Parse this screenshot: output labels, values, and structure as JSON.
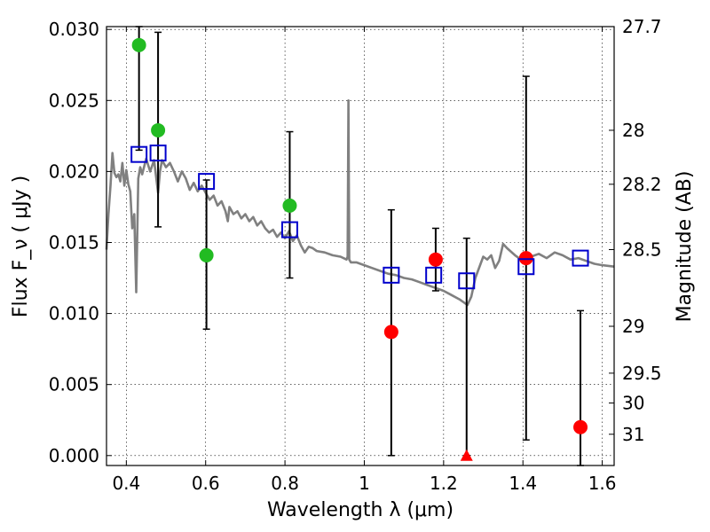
{
  "chart_data": {
    "type": "scatter",
    "xlabel": "Wavelength  λ (μm)",
    "ylabel": "Flux  F_ν  ( μJy )",
    "y2label": "Magnitude (AB)",
    "xlim": [
      0.35,
      1.63
    ],
    "ylim": [
      -0.0007,
      0.0302
    ],
    "grid": true,
    "x_ticks": [
      0.4,
      0.6,
      0.8,
      1.0,
      1.2,
      1.4,
      1.6
    ],
    "x_tick_labels": [
      "0.4",
      "0.6",
      "0.8",
      "1",
      "1.2",
      "1.4",
      "1.6"
    ],
    "y_ticks": [
      0.0,
      0.005,
      0.01,
      0.015,
      0.02,
      0.025,
      0.03
    ],
    "y_tick_labels": [
      "0.000",
      "0.005",
      "0.010",
      "0.015",
      "0.020",
      "0.025",
      "0.030"
    ],
    "y2_ticks": [
      {
        "label": "27.7",
        "flux": 0.0302
      },
      {
        "label": "28",
        "flux": 0.0229
      },
      {
        "label": "28.2",
        "flux": 0.0191
      },
      {
        "label": "28.5",
        "flux": 0.0145
      },
      {
        "label": "29",
        "flux": 0.0091
      },
      {
        "label": "29.5",
        "flux": 0.0058
      },
      {
        "label": "30",
        "flux": 0.0037
      },
      {
        "label": "31",
        "flux": 0.0015
      }
    ],
    "colors": {
      "model": "#808080",
      "green": "#22bb22",
      "red": "#ff0000",
      "blue": "#0000cc",
      "errorbar": "#000000"
    },
    "series": [
      {
        "name": "model spectrum",
        "style": "line",
        "points": [
          [
            0.35,
            0.0145
          ],
          [
            0.355,
            0.017
          ],
          [
            0.36,
            0.019
          ],
          [
            0.365,
            0.0213
          ],
          [
            0.37,
            0.0199
          ],
          [
            0.375,
            0.0196
          ],
          [
            0.38,
            0.0198
          ],
          [
            0.385,
            0.0193
          ],
          [
            0.39,
            0.0206
          ],
          [
            0.395,
            0.019
          ],
          [
            0.4,
            0.0201
          ],
          [
            0.405,
            0.0191
          ],
          [
            0.41,
            0.0186
          ],
          [
            0.415,
            0.016
          ],
          [
            0.42,
            0.017
          ],
          [
            0.425,
            0.0115
          ],
          [
            0.43,
            0.0195
          ],
          [
            0.435,
            0.0203
          ],
          [
            0.44,
            0.0198
          ],
          [
            0.45,
            0.0209
          ],
          [
            0.46,
            0.02
          ],
          [
            0.47,
            0.0208
          ],
          [
            0.48,
            0.0185
          ],
          [
            0.485,
            0.02
          ],
          [
            0.49,
            0.0208
          ],
          [
            0.5,
            0.0203
          ],
          [
            0.51,
            0.0206
          ],
          [
            0.52,
            0.02
          ],
          [
            0.53,
            0.0193
          ],
          [
            0.54,
            0.02
          ],
          [
            0.55,
            0.0195
          ],
          [
            0.56,
            0.0187
          ],
          [
            0.57,
            0.0192
          ],
          [
            0.58,
            0.0186
          ],
          [
            0.59,
            0.019
          ],
          [
            0.6,
            0.0185
          ],
          [
            0.61,
            0.018
          ],
          [
            0.62,
            0.0183
          ],
          [
            0.63,
            0.0176
          ],
          [
            0.64,
            0.0179
          ],
          [
            0.65,
            0.0172
          ],
          [
            0.656,
            0.0165
          ],
          [
            0.66,
            0.0175
          ],
          [
            0.67,
            0.017
          ],
          [
            0.68,
            0.0172
          ],
          [
            0.69,
            0.0167
          ],
          [
            0.7,
            0.017
          ],
          [
            0.71,
            0.0165
          ],
          [
            0.72,
            0.0168
          ],
          [
            0.73,
            0.0162
          ],
          [
            0.74,
            0.0165
          ],
          [
            0.75,
            0.016
          ],
          [
            0.76,
            0.0157
          ],
          [
            0.77,
            0.0159
          ],
          [
            0.78,
            0.0154
          ],
          [
            0.79,
            0.0157
          ],
          [
            0.8,
            0.0153
          ],
          [
            0.81,
            0.0158
          ],
          [
            0.82,
            0.0151
          ],
          [
            0.83,
            0.0155
          ],
          [
            0.84,
            0.0148
          ],
          [
            0.85,
            0.0143
          ],
          [
            0.86,
            0.0147
          ],
          [
            0.87,
            0.0146
          ],
          [
            0.88,
            0.0144
          ],
          [
            0.9,
            0.0143
          ],
          [
            0.92,
            0.0141
          ],
          [
            0.94,
            0.014
          ],
          [
            0.955,
            0.0138
          ],
          [
            0.958,
            0.014
          ],
          [
            0.96,
            0.025
          ],
          [
            0.962,
            0.0138
          ],
          [
            0.966,
            0.0136
          ],
          [
            0.98,
            0.0136
          ],
          [
            1.0,
            0.0134
          ],
          [
            1.02,
            0.0132
          ],
          [
            1.04,
            0.013
          ],
          [
            1.06,
            0.0128
          ],
          [
            1.08,
            0.0127
          ],
          [
            1.1,
            0.0125
          ],
          [
            1.12,
            0.0124
          ],
          [
            1.14,
            0.0122
          ],
          [
            1.16,
            0.012
          ],
          [
            1.18,
            0.0118
          ],
          [
            1.2,
            0.0116
          ],
          [
            1.22,
            0.0113
          ],
          [
            1.24,
            0.011
          ],
          [
            1.26,
            0.0106
          ],
          [
            1.27,
            0.0112
          ],
          [
            1.28,
            0.0125
          ],
          [
            1.3,
            0.014
          ],
          [
            1.31,
            0.0138
          ],
          [
            1.32,
            0.0141
          ],
          [
            1.33,
            0.0132
          ],
          [
            1.34,
            0.0137
          ],
          [
            1.35,
            0.0149
          ],
          [
            1.36,
            0.0146
          ],
          [
            1.38,
            0.0141
          ],
          [
            1.4,
            0.0137
          ],
          [
            1.42,
            0.014
          ],
          [
            1.44,
            0.0142
          ],
          [
            1.46,
            0.0139
          ],
          [
            1.48,
            0.0143
          ],
          [
            1.5,
            0.0141
          ],
          [
            1.52,
            0.0138
          ],
          [
            1.54,
            0.0139
          ],
          [
            1.56,
            0.0137
          ],
          [
            1.58,
            0.0135
          ],
          [
            1.6,
            0.0134
          ],
          [
            1.63,
            0.0133
          ]
        ]
      },
      {
        "name": "green points",
        "style": "circle",
        "points": [
          [
            0.432,
            0.0289
          ],
          [
            0.48,
            0.0229
          ],
          [
            0.602,
            0.0141
          ],
          [
            0.812,
            0.0176
          ]
        ]
      },
      {
        "name": "red points",
        "style": "circle",
        "points": [
          [
            1.068,
            0.0087
          ],
          [
            1.18,
            0.0138
          ],
          [
            1.408,
            0.0139
          ],
          [
            1.545,
            0.002
          ]
        ]
      },
      {
        "name": "red upper limit",
        "style": "triangle",
        "points": [
          [
            1.258,
            0.0
          ]
        ]
      },
      {
        "name": "blue model photometry",
        "style": "square",
        "points": [
          [
            0.432,
            0.0212
          ],
          [
            0.48,
            0.0213
          ],
          [
            0.602,
            0.0193
          ],
          [
            0.812,
            0.0159
          ],
          [
            1.068,
            0.0127
          ],
          [
            1.175,
            0.0127
          ],
          [
            1.258,
            0.0123
          ],
          [
            1.408,
            0.0133
          ],
          [
            1.545,
            0.0139
          ]
        ]
      },
      {
        "name": "error bars",
        "style": "errorbar",
        "bars": [
          {
            "x": 0.432,
            "low": 0.0215,
            "high": 0.0302
          },
          {
            "x": 0.48,
            "low": 0.0161,
            "high": 0.0298
          },
          {
            "x": 0.602,
            "low": 0.0089,
            "high": 0.0194
          },
          {
            "x": 0.812,
            "low": 0.0125,
            "high": 0.0228
          },
          {
            "x": 1.068,
            "low": 0.0,
            "high": 0.0173
          },
          {
            "x": 1.18,
            "low": 0.0116,
            "high": 0.016
          },
          {
            "x": 1.258,
            "low": 0.0,
            "high": 0.0153
          },
          {
            "x": 1.408,
            "low": 0.0011,
            "high": 0.0267
          },
          {
            "x": 1.545,
            "low": -0.0007,
            "high": 0.0102
          }
        ]
      }
    ]
  }
}
